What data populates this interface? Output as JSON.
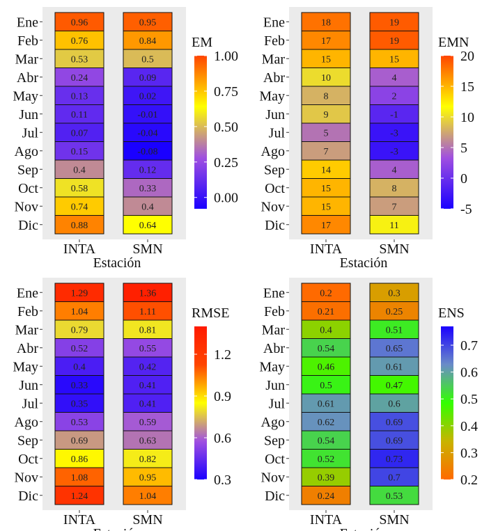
{
  "months": [
    "Ene",
    "Feb",
    "Mar",
    "Abr",
    "May",
    "Jun",
    "Jul",
    "Ago",
    "Sep",
    "Oct",
    "Nov",
    "Dic"
  ],
  "stations": [
    "INTA",
    "SMN"
  ],
  "xlabel": "Estación",
  "chart_data": [
    {
      "type": "heatmap",
      "title": "EM",
      "categories_x": [
        "INTA",
        "SMN"
      ],
      "categories_y": [
        "Ene",
        "Feb",
        "Mar",
        "Abr",
        "May",
        "Jun",
        "Jul",
        "Ago",
        "Sep",
        "Oct",
        "Nov",
        "Dic"
      ],
      "xlabel": "Estación",
      "values": {
        "INTA": [
          "0.96",
          "0.76",
          "0.53",
          "0.24",
          "0.13",
          "0.11",
          "0.07",
          "0.15",
          "0.4",
          "0.58",
          "0.74",
          "0.88"
        ],
        "SMN": [
          "0.95",
          "0.84",
          "0.5",
          "0.09",
          "0.02",
          "-0.01",
          "-0.04",
          "-0.08",
          "0.12",
          "0.33",
          "0.4",
          "0.64"
        ]
      },
      "legend": {
        "title": "EM",
        "min": -0.08,
        "max": 1.0,
        "ticks": [
          "0.00",
          "0.25",
          "0.50",
          "0.75",
          "1.00"
        ],
        "tick_values": [
          0,
          0.25,
          0.5,
          0.75,
          1.0
        ]
      },
      "colors": [
        "#1a00ff",
        "#a050e0",
        "#ffff00",
        "#ff4500"
      ]
    },
    {
      "type": "heatmap",
      "title": "EMN",
      "categories_x": [
        "INTA",
        "SMN"
      ],
      "categories_y": [
        "Ene",
        "Feb",
        "Mar",
        "Abr",
        "May",
        "Jun",
        "Jul",
        "Ago",
        "Sep",
        "Oct",
        "Nov",
        "Dic"
      ],
      "xlabel": "Estación",
      "values": {
        "INTA": [
          "18",
          "17",
          "15",
          "10",
          "8",
          "9",
          "5",
          "7",
          "14",
          "15",
          "15",
          "17"
        ],
        "SMN": [
          "19",
          "19",
          "15",
          "4",
          "2",
          "-1",
          "-3",
          "-3",
          "4",
          "8",
          "7",
          "11"
        ]
      },
      "legend": {
        "title": "EMN",
        "min": -5,
        "max": 20,
        "ticks": [
          "-5",
          "0",
          "5",
          "10",
          "15",
          "20"
        ],
        "tick_values": [
          -5,
          0,
          5,
          10,
          15,
          20
        ]
      },
      "colors": [
        "#1a00ff",
        "#a050e0",
        "#ffff00",
        "#ff4500"
      ]
    },
    {
      "type": "heatmap",
      "title": "RMSE",
      "categories_x": [
        "INTA",
        "SMN"
      ],
      "categories_y": [
        "Ene",
        "Feb",
        "Mar",
        "Abr",
        "May",
        "Jun",
        "Jul",
        "Ago",
        "Sep",
        "Oct",
        "Nov",
        "Dic"
      ],
      "xlabel": "Estación",
      "values": {
        "INTA": [
          "1.29",
          "1.04",
          "0.79",
          "0.52",
          "0.4",
          "0.33",
          "0.35",
          "0.53",
          "0.69",
          "0.86",
          "1.08",
          "1.24"
        ],
        "SMN": [
          "1.36",
          "1.11",
          "0.81",
          "0.55",
          "0.42",
          "0.41",
          "0.41",
          "0.59",
          "0.63",
          "0.82",
          "0.95",
          "1.04"
        ]
      },
      "legend": {
        "title": "RMSE",
        "min": 0.3,
        "max": 1.4,
        "ticks": [
          "0.3",
          "0.6",
          "0.9",
          "1.2"
        ],
        "tick_values": [
          0.3,
          0.6,
          0.9,
          1.2
        ]
      },
      "colors": [
        "#1a00ff",
        "#a050e0",
        "#ffff00",
        "#ff4500",
        "#ff1a00"
      ]
    },
    {
      "type": "heatmap",
      "title": "ENS",
      "categories_x": [
        "INTA",
        "SMN"
      ],
      "categories_y": [
        "Ene",
        "Feb",
        "Mar",
        "Abr",
        "May",
        "Jun",
        "Jul",
        "Ago",
        "Sep",
        "Oct",
        "Nov",
        "Dic"
      ],
      "xlabel": "Estación",
      "values": {
        "INTA": [
          "0.2",
          "0.21",
          "0.4",
          "0.54",
          "0.46",
          "0.5",
          "0.61",
          "0.62",
          "0.54",
          "0.52",
          "0.39",
          "0.24"
        ],
        "SMN": [
          "0.3",
          "0.25",
          "0.51",
          "0.65",
          "0.61",
          "0.47",
          "0.6",
          "0.69",
          "0.69",
          "0.73",
          "0.7",
          "0.53"
        ]
      },
      "legend": {
        "title": "ENS",
        "min": 0.2,
        "max": 0.77,
        "ticks": [
          "0.2",
          "0.3",
          "0.4",
          "0.5",
          "0.6",
          "0.7"
        ],
        "tick_values": [
          0.2,
          0.3,
          0.4,
          0.5,
          0.6,
          0.7
        ]
      },
      "colors": [
        "#ff6a00",
        "#c8b400",
        "#33ff00",
        "#6a8cc8",
        "#1a00ff"
      ]
    }
  ]
}
